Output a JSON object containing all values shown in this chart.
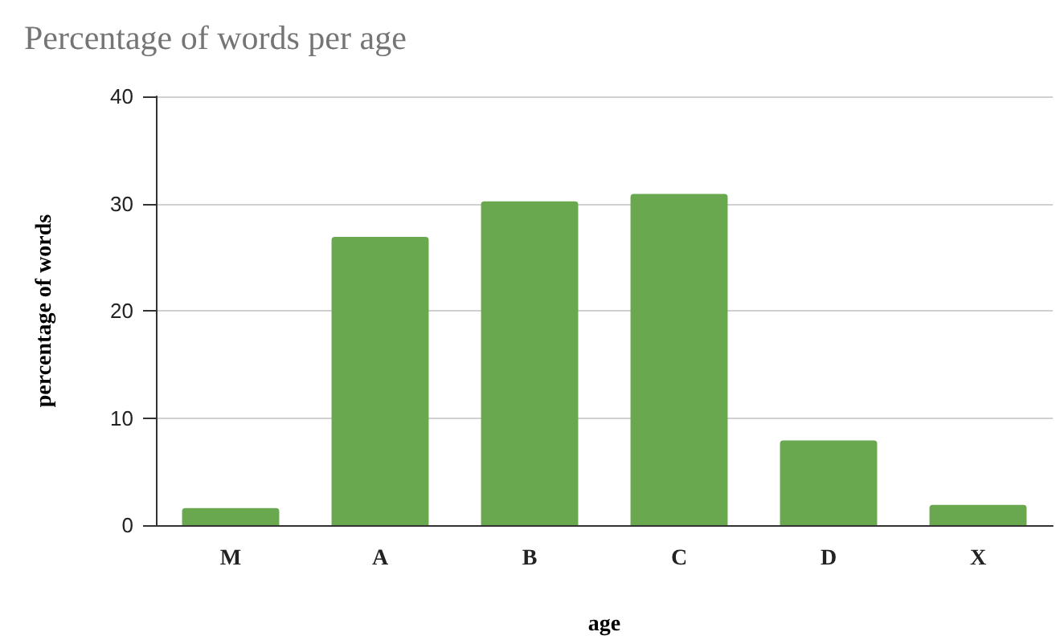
{
  "chart_data": {
    "type": "bar",
    "title": "Percentage of words per age",
    "xlabel": "age",
    "ylabel": "percentage of words",
    "categories": [
      "M",
      "A",
      "B",
      "C",
      "D",
      "X"
    ],
    "values": [
      1.6,
      26.9,
      30.2,
      30.9,
      7.9,
      1.9
    ],
    "color": "#6aa84f",
    "ylim": [
      0,
      40
    ],
    "yticks": [
      0,
      10,
      20,
      30,
      40
    ],
    "grid": "y"
  }
}
